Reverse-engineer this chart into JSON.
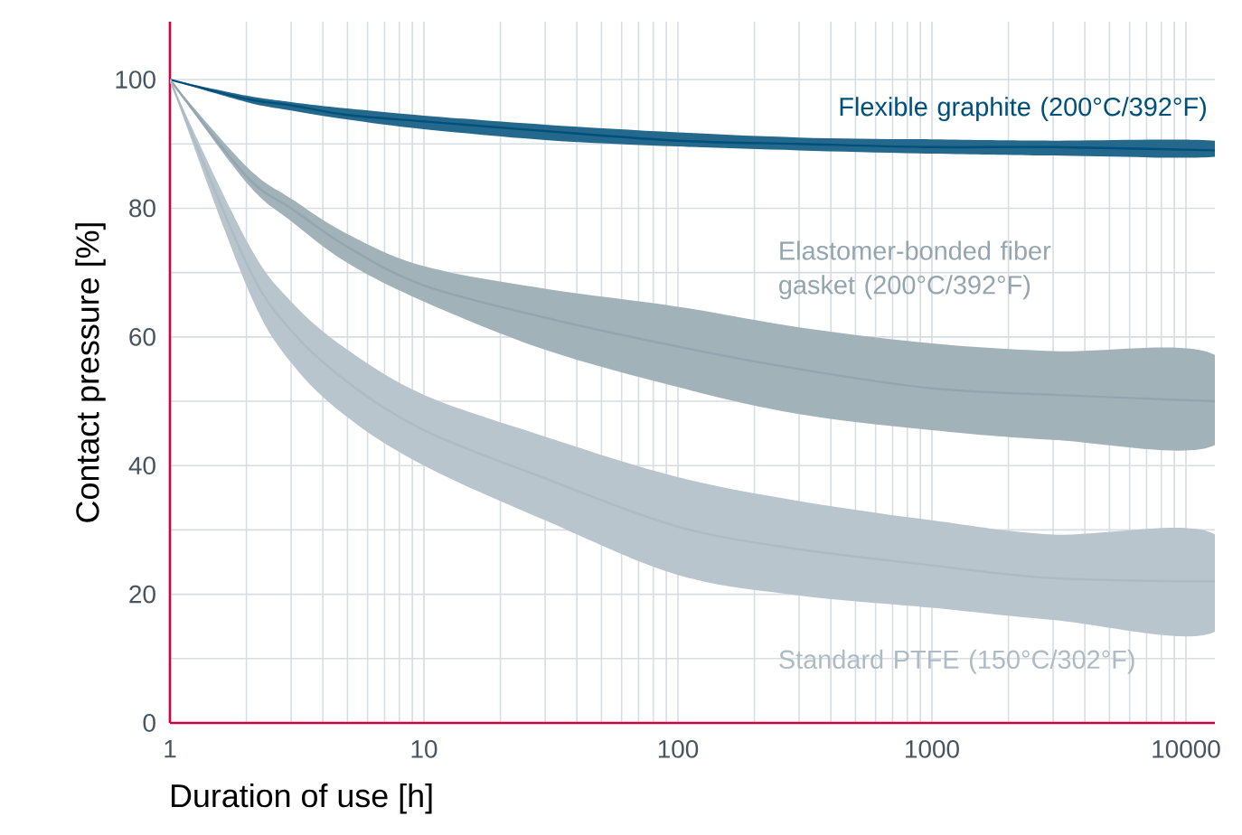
{
  "chart_data": {
    "type": "line",
    "xlabel": "Duration of use [h]",
    "ylabel": "Contact pressure [%]",
    "log": "x",
    "grid": true,
    "xlim": [
      1,
      13000
    ],
    "xticks": [
      1,
      10,
      100,
      1000,
      10000
    ],
    "ylim": [
      0,
      109
    ],
    "yticks": [
      0,
      {
        "value": 10,
        "label": null
      },
      20,
      {
        "value": 30,
        "label": null
      },
      40,
      {
        "value": 50,
        "label": null
      },
      60,
      {
        "value": 70,
        "label": null
      },
      80,
      {
        "value": 90,
        "label": null
      },
      100
    ],
    "x": [
      1,
      2,
      3,
      5,
      10,
      30,
      100,
      300,
      1000,
      3000,
      13000
    ],
    "series": [
      {
        "name": "Flexible graphite (200°C/392°F)",
        "color": "#00507a",
        "values": [
          100,
          97,
          96,
          94.5,
          93.5,
          92,
          90.5,
          90,
          89.5,
          89.5,
          89
        ],
        "lower": [
          100,
          96.5,
          95.2,
          93.8,
          92.3,
          90.6,
          89.6,
          89,
          88.5,
          88.2,
          88.0
        ],
        "upper": [
          100,
          97.5,
          96.5,
          95.5,
          94.4,
          93,
          91.8,
          91,
          90.7,
          90.5,
          90.5
        ]
      },
      {
        "name": "Elastomer-bonded fiber gasket (200°C/392°F)",
        "color": "#93a5ae",
        "values": [
          100,
          85,
          80,
          74,
          68,
          63,
          58.5,
          55,
          52,
          51,
          50
        ],
        "lower": [
          100,
          84,
          78,
          71.5,
          65.5,
          58,
          52.2,
          48,
          45.5,
          44,
          43.2
        ],
        "upper": [
          100,
          86.5,
          81.5,
          76,
          71,
          67.5,
          64.7,
          61.5,
          59,
          57.8,
          57.2
        ]
      },
      {
        "name": "Standard PTFE (150°C/302°F)",
        "color": "#adbbc4",
        "values": [
          100,
          71.5,
          61,
          53,
          45.5,
          38,
          30.5,
          27,
          24.5,
          22.5,
          22
        ],
        "lower": [
          100,
          68,
          56,
          47.5,
          40,
          31.5,
          23,
          19.8,
          17.9,
          16,
          14.2
        ],
        "upper": [
          100,
          75,
          65.5,
          58,
          51,
          44.5,
          38.2,
          34.5,
          31.5,
          29.3,
          29.3
        ]
      }
    ]
  }
}
